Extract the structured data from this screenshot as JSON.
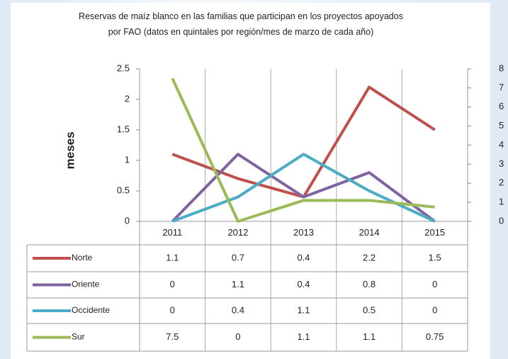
{
  "chart_data": {
    "type": "line",
    "title": "Reservas de maíz blanco en las familias que participan en los proyectos apoyados por FAO (datos en quintales por región/mes de marzo de cada año)",
    "y_label": "meses",
    "categories": [
      "2011",
      "2012",
      "2013",
      "2014",
      "2015"
    ],
    "ylim": [
      0,
      2.5
    ],
    "yticks": [
      0,
      0.5,
      1,
      1.5,
      2,
      2.5
    ],
    "y2lim": [
      0,
      8
    ],
    "y2ticks": [
      0,
      1,
      2,
      3,
      4,
      5,
      6,
      7,
      8
    ],
    "series": [
      {
        "name": "Norte",
        "color": "#c0504d",
        "values": [
          1.1,
          0.7,
          0.4,
          2.2,
          1.5
        ]
      },
      {
        "name": "Oriente",
        "color": "#8064a2",
        "values": [
          0,
          1.1,
          0.4,
          0.8,
          0
        ]
      },
      {
        "name": "Occidente",
        "color": "#4bacc6",
        "values": [
          0,
          0.4,
          1.1,
          0.5,
          0
        ]
      },
      {
        "name": "Sur",
        "color": "#9bbb59",
        "axis": "y2",
        "values": [
          7.5,
          0,
          1.1,
          1.1,
          0.75
        ]
      }
    ]
  }
}
